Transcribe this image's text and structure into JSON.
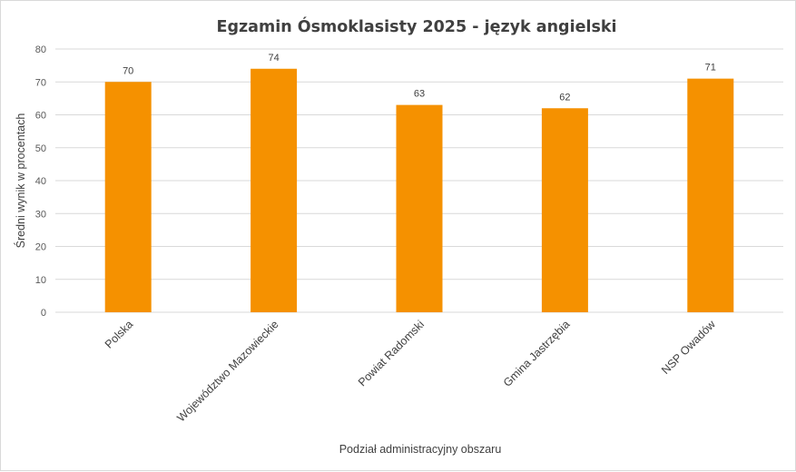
{
  "chart_data": {
    "type": "bar",
    "title": "Egzamin Ósmoklasisty 2025 - język angielski",
    "xlabel": "Podział administracyjny obszaru",
    "ylabel": "Średni wynik w procentach",
    "categories": [
      "Polska",
      "Województwo Mazowieckie",
      "Powiat Radomski",
      "Gmina Jastrzębia",
      "NSP Owadów"
    ],
    "values": [
      70,
      74,
      63,
      62,
      71
    ],
    "ylim": [
      0,
      80
    ],
    "yticks": [
      0,
      10,
      20,
      30,
      40,
      50,
      60,
      70,
      80
    ],
    "grid": true,
    "legend": "none",
    "bar_color": "#F59100"
  }
}
